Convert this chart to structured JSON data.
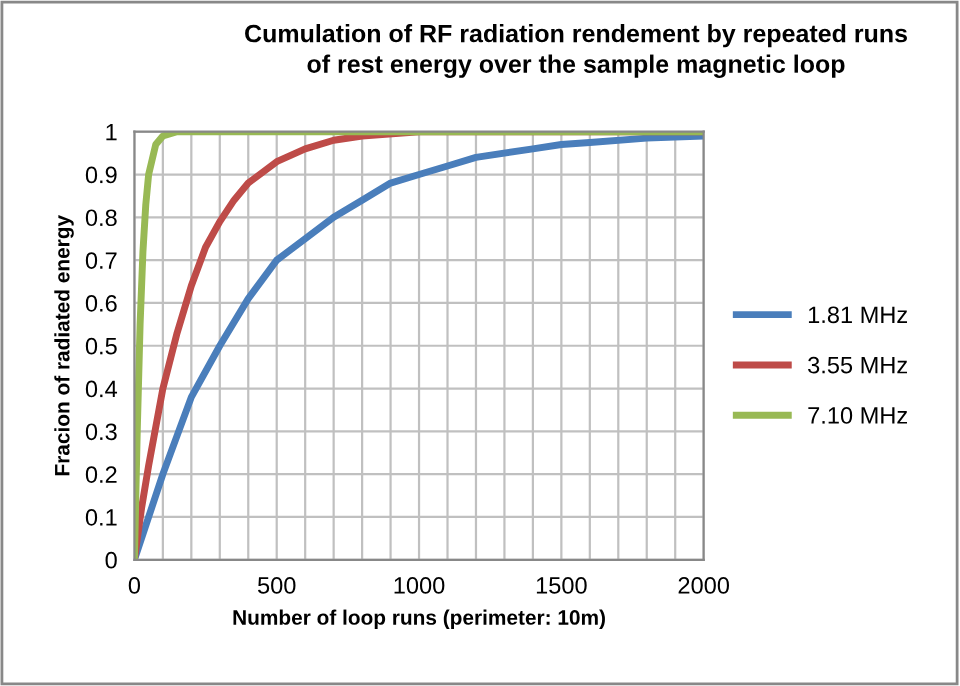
{
  "chart_data": {
    "type": "line",
    "title": "Cumulation of RF radiation rendement by repeated runs\nof rest energy over the sample magnetic loop",
    "xlabel": "Number of loop runs (perimeter: 10m)",
    "ylabel": "Fracion of radiated energy",
    "series": [
      {
        "name": "1.81 MHz",
        "color": "#4a7ebb",
        "x": [
          0,
          100,
          200,
          300,
          400,
          500,
          600,
          700,
          800,
          900,
          1000,
          1100,
          1200,
          1400,
          1500,
          1600,
          1800,
          2000
        ],
        "values": [
          0,
          0.2,
          0.38,
          0.5,
          0.61,
          0.7,
          0.75,
          0.8,
          0.84,
          0.88,
          0.9,
          0.92,
          0.94,
          0.96,
          0.97,
          0.975,
          0.985,
          0.99
        ]
      },
      {
        "name": "3.55 MHz",
        "color": "#be4b48",
        "x": [
          0,
          25,
          50,
          100,
          150,
          200,
          250,
          300,
          350,
          400,
          500,
          600,
          700,
          800,
          1000,
          2000
        ],
        "values": [
          0,
          0.12,
          0.22,
          0.4,
          0.53,
          0.64,
          0.73,
          0.79,
          0.84,
          0.88,
          0.93,
          0.96,
          0.98,
          0.99,
          1,
          1
        ]
      },
      {
        "name": "7.10 MHz",
        "color": "#98b954",
        "x": [
          0,
          10,
          20,
          30,
          40,
          50,
          75,
          100,
          150,
          2000
        ],
        "values": [
          0,
          0.3,
          0.55,
          0.72,
          0.83,
          0.9,
          0.97,
          0.99,
          1,
          1
        ]
      }
    ],
    "xlim": [
      0,
      2000
    ],
    "ylim": [
      0,
      1
    ],
    "xticks": [
      0,
      {
        "value": 100,
        "label": null
      },
      {
        "value": 200,
        "label": null
      },
      {
        "value": 300,
        "label": null
      },
      {
        "value": 400,
        "label": null
      },
      500,
      {
        "value": 600,
        "label": null
      },
      {
        "value": 700,
        "label": null
      },
      {
        "value": 800,
        "label": null
      },
      {
        "value": 900,
        "label": null
      },
      1000,
      {
        "value": 1100,
        "label": null
      },
      {
        "value": 1200,
        "label": null
      },
      {
        "value": 1300,
        "label": null
      },
      {
        "value": 1400,
        "label": null
      },
      1500,
      {
        "value": 1600,
        "label": null
      },
      {
        "value": 1700,
        "label": null
      },
      {
        "value": 1800,
        "label": null
      },
      {
        "value": 1900,
        "label": null
      },
      2000
    ],
    "yticks": [
      0,
      0.1,
      0.2,
      0.3,
      0.4,
      0.5,
      0.6,
      0.7,
      0.8,
      0.9,
      1
    ],
    "grid": true,
    "legend": "right",
    "marker": "none",
    "line_style": "solid"
  }
}
